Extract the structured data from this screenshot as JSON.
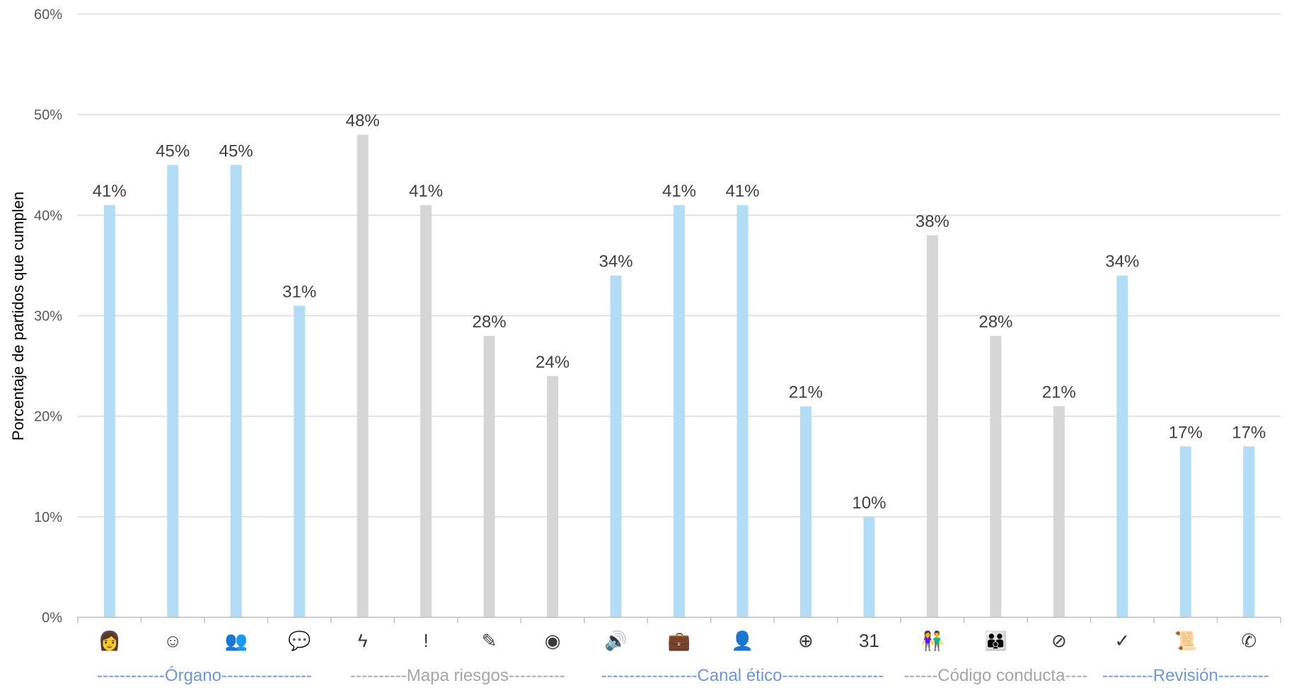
{
  "chart_data": {
    "type": "bar",
    "ylabel": "Porcentaje de partidos que cumplen",
    "ylim": [
      0,
      60
    ],
    "yticks": [
      0,
      10,
      20,
      30,
      40,
      50,
      60
    ],
    "ytick_labels": [
      "0%",
      "10%",
      "20%",
      "30%",
      "40%",
      "50%",
      "60%"
    ],
    "grid": true,
    "categories": [
      {
        "icon": "person-portrait-icon",
        "glyph": "👩",
        "value": 41,
        "label": "41%",
        "group": 0
      },
      {
        "icon": "smiley-face-icon",
        "glyph": "☺",
        "value": 45,
        "label": "45%",
        "group": 0
      },
      {
        "icon": "people-icon",
        "glyph": "👥",
        "value": 45,
        "label": "45%",
        "group": 0
      },
      {
        "icon": "speech-bubble-icon",
        "glyph": "💬",
        "value": 31,
        "label": "31%",
        "group": 0
      },
      {
        "icon": "lightning-icon",
        "glyph": "ϟ",
        "value": 48,
        "label": "48%",
        "group": 1
      },
      {
        "icon": "exclamation-icon",
        "glyph": "!",
        "value": 41,
        "label": "41%",
        "group": 1
      },
      {
        "icon": "notepad-icon",
        "glyph": "✎",
        "value": 28,
        "label": "28%",
        "group": 1
      },
      {
        "icon": "target-icon",
        "glyph": "◉",
        "value": 24,
        "label": "24%",
        "group": 1
      },
      {
        "icon": "speaker-icon",
        "glyph": "🔊",
        "value": 34,
        "label": "34%",
        "group": 2
      },
      {
        "icon": "briefcase-icon",
        "glyph": "💼",
        "value": 41,
        "label": "41%",
        "group": 2
      },
      {
        "icon": "person-lock-icon",
        "glyph": "👤",
        "value": 41,
        "label": "41%",
        "group": 2
      },
      {
        "icon": "globe-icon",
        "glyph": "⊕",
        "value": 21,
        "label": "21%",
        "group": 2
      },
      {
        "icon": "calendar-icon",
        "glyph": "31",
        "value": 10,
        "label": "10%",
        "group": 2
      },
      {
        "icon": "couple-icon",
        "glyph": "👫",
        "value": 38,
        "label": "38%",
        "group": 3
      },
      {
        "icon": "family-icon",
        "glyph": "👪",
        "value": 28,
        "label": "28%",
        "group": 3
      },
      {
        "icon": "prohibited-icon",
        "glyph": "⊘",
        "value": 21,
        "label": "21%",
        "group": 3
      },
      {
        "icon": "checkmark-icon",
        "glyph": "✓",
        "value": 34,
        "label": "34%",
        "group": 4
      },
      {
        "icon": "scroll-icon",
        "glyph": "📜",
        "value": 17,
        "label": "17%",
        "group": 4
      },
      {
        "icon": "phone-icon",
        "glyph": "✆",
        "value": 17,
        "label": "17%",
        "group": 4
      }
    ],
    "groups": [
      {
        "label": "------------Órgano----------------",
        "color": "#6f97d8",
        "bar_color": "#b3dcf7"
      },
      {
        "label": "----------Mapa riesgos----------",
        "color": "#a6a6a6",
        "bar_color": "#d6d6d6"
      },
      {
        "label": "-----------------Canal ético------------------",
        "color": "#6f97d8",
        "bar_color": "#b3dcf7"
      },
      {
        "label": "------Código conducta----",
        "color": "#a6a6a6",
        "bar_color": "#d6d6d6"
      },
      {
        "label": "---------Revisión---------",
        "color": "#6f97d8",
        "bar_color": "#b3dcf7"
      }
    ]
  }
}
